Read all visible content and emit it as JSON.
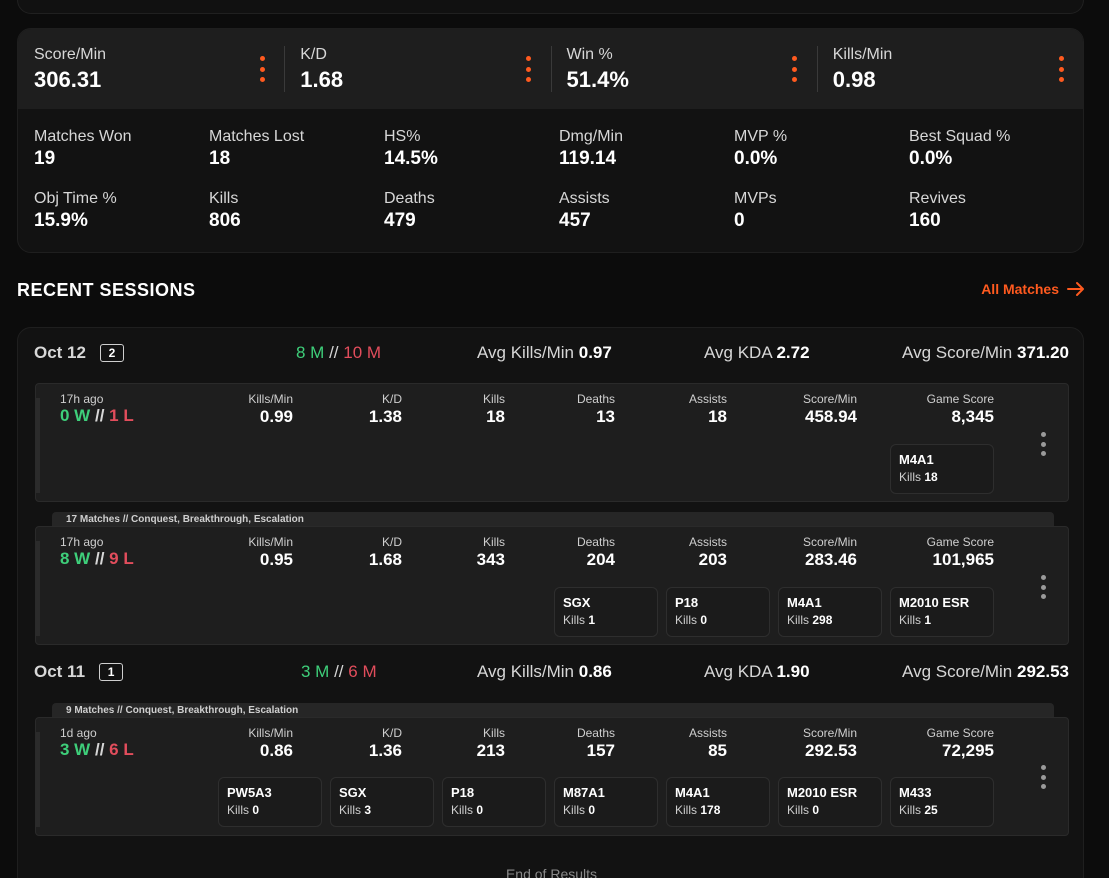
{
  "highlights": [
    {
      "label": "Score/Min",
      "value": "306.31"
    },
    {
      "label": "K/D",
      "value": "1.68"
    },
    {
      "label": "Win %",
      "value": "51.4%"
    },
    {
      "label": "Kills/Min",
      "value": "0.98"
    }
  ],
  "stats": [
    {
      "label": "Matches Won",
      "value": "19"
    },
    {
      "label": "Matches Lost",
      "value": "18"
    },
    {
      "label": "HS%",
      "value": "14.5%"
    },
    {
      "label": "Dmg/Min",
      "value": "119.14"
    },
    {
      "label": "MVP %",
      "value": "0.0%"
    },
    {
      "label": "Best Squad %",
      "value": "0.0%"
    },
    {
      "label": "Obj Time %",
      "value": "15.9%"
    },
    {
      "label": "Kills",
      "value": "806"
    },
    {
      "label": "Deaths",
      "value": "479"
    },
    {
      "label": "Assists",
      "value": "457"
    },
    {
      "label": "MVPs",
      "value": "0"
    },
    {
      "label": "Revives",
      "value": "160"
    }
  ],
  "recent": {
    "title": "RECENT SESSIONS",
    "all_matches": "All Matches",
    "end_of_results": "End of Results"
  },
  "labels": {
    "sep": "//",
    "avg_kills": "Avg Kills/Min",
    "avg_kda": "Avg KDA",
    "avg_score": "Avg Score/Min",
    "kills_min": "Kills/Min",
    "kd": "K/D",
    "kills": "Kills",
    "deaths": "Deaths",
    "assists": "Assists",
    "score_min": "Score/Min",
    "game_score": "Game Score",
    "weapon_kills": "Kills"
  },
  "days": [
    {
      "date": "Oct 12",
      "count": "2",
      "wins": "8 M",
      "losses": "10 M",
      "avg_kills": "0.97",
      "avg_kda": "2.72",
      "avg_score": "371.20",
      "sessions": [
        {
          "ago": "17h ago",
          "w": "0 W",
          "l": "1 L",
          "kills_min": "0.99",
          "kd": "1.38",
          "kills": "18",
          "deaths": "13",
          "assists": "18",
          "score_min": "458.94",
          "game_score": "8,345",
          "weapons": [
            {
              "name": "M4A1",
              "kills": "18"
            }
          ]
        },
        {
          "tag": "17 Matches // Conquest, Breakthrough, Escalation",
          "ago": "17h ago",
          "w": "8 W",
          "l": "9 L",
          "kills_min": "0.95",
          "kd": "1.68",
          "kills": "343",
          "deaths": "204",
          "assists": "203",
          "score_min": "283.46",
          "game_score": "101,965",
          "weapons": [
            {
              "name": "SGX",
              "kills": "1"
            },
            {
              "name": "P18",
              "kills": "0"
            },
            {
              "name": "M4A1",
              "kills": "298"
            },
            {
              "name": "M2010 ESR",
              "kills": "1"
            }
          ]
        }
      ]
    },
    {
      "date": "Oct 11",
      "count": "1",
      "wins": "3 M",
      "losses": "6 M",
      "avg_kills": "0.86",
      "avg_kda": "1.90",
      "avg_score": "292.53",
      "sessions": [
        {
          "tag": "9 Matches // Conquest, Breakthrough, Escalation",
          "ago": "1d ago",
          "w": "3 W",
          "l": "6 L",
          "kills_min": "0.86",
          "kd": "1.36",
          "kills": "213",
          "deaths": "157",
          "assists": "85",
          "score_min": "292.53",
          "game_score": "72,295",
          "weapons": [
            {
              "name": "PW5A3",
              "kills": "0"
            },
            {
              "name": "SGX",
              "kills": "3"
            },
            {
              "name": "P18",
              "kills": "0"
            },
            {
              "name": "M87A1",
              "kills": "0"
            },
            {
              "name": "M4A1",
              "kills": "178"
            },
            {
              "name": "M2010 ESR",
              "kills": "0"
            },
            {
              "name": "M433",
              "kills": "25"
            }
          ]
        }
      ]
    }
  ]
}
